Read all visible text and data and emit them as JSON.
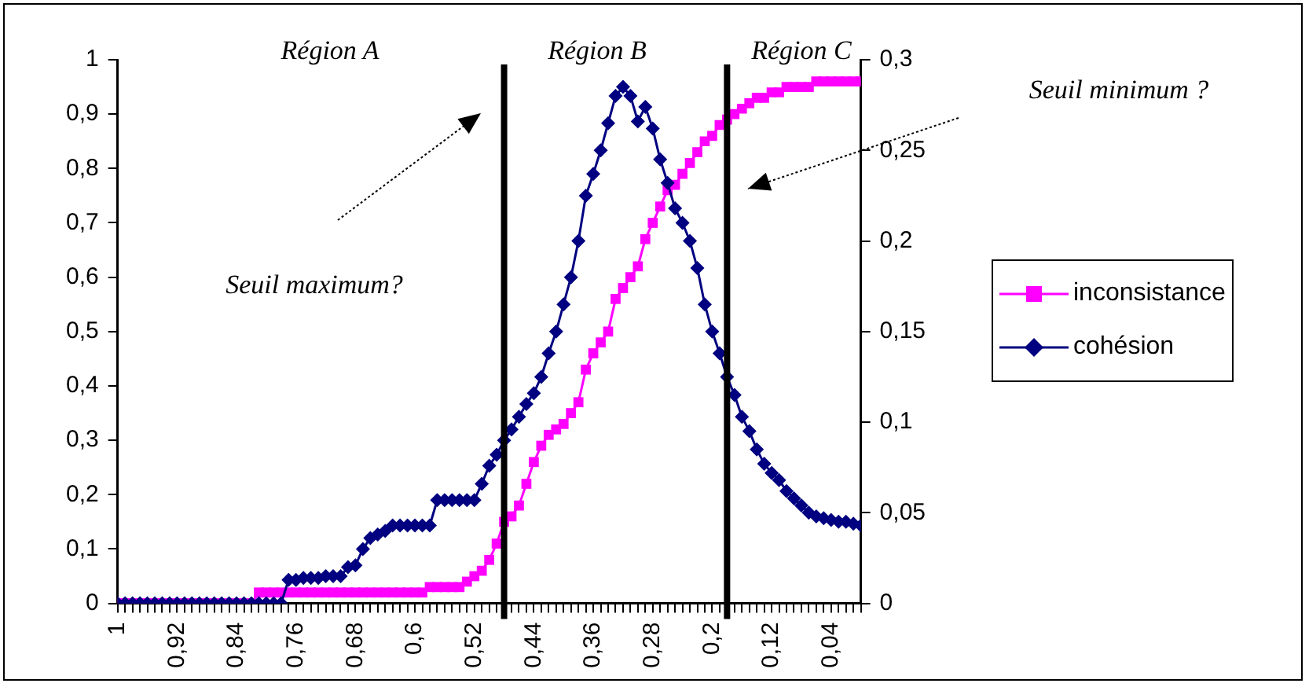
{
  "chart_data": {
    "type": "line",
    "annotations": [
      "Région A",
      "Région B",
      "Région C",
      "Seuil maximum?",
      "Seuil minimum ?"
    ],
    "x": [
      1,
      0.99,
      0.98,
      0.97,
      0.96,
      0.95,
      0.94,
      0.93,
      0.92,
      0.91,
      0.9,
      0.89,
      0.88,
      0.87,
      0.86,
      0.85,
      0.84,
      0.83,
      0.82,
      0.81,
      0.8,
      0.79,
      0.78,
      0.77,
      0.76,
      0.75,
      0.74,
      0.73,
      0.72,
      0.71,
      0.7,
      0.69,
      0.68,
      0.67,
      0.66,
      0.65,
      0.64,
      0.63,
      0.62,
      0.61,
      0.6,
      0.59,
      0.58,
      0.57,
      0.56,
      0.55,
      0.54,
      0.53,
      0.52,
      0.51,
      0.5,
      0.49,
      0.48,
      0.47,
      0.46,
      0.45,
      0.44,
      0.43,
      0.42,
      0.41,
      0.4,
      0.39,
      0.38,
      0.37,
      0.36,
      0.35,
      0.34,
      0.33,
      0.32,
      0.31,
      0.3,
      0.29,
      0.28,
      0.27,
      0.26,
      0.25,
      0.24,
      0.23,
      0.22,
      0.21,
      0.2,
      0.19,
      0.18,
      0.17,
      0.16,
      0.15,
      0.14,
      0.13,
      0.12,
      0.11,
      0.1,
      0.09,
      0.08,
      0.07,
      0.06,
      0.05,
      0.04,
      0.03,
      0.02,
      0.01,
      0
    ],
    "series": [
      {
        "name": "inconsistance",
        "color": "#ff00ff",
        "marker": "square",
        "values": [
          0,
          0,
          0,
          0,
          0,
          0,
          0,
          0,
          0,
          0,
          0,
          0,
          0,
          0,
          0,
          0,
          0,
          0,
          0,
          0.02,
          0.02,
          0.02,
          0.02,
          0.02,
          0.02,
          0.02,
          0.02,
          0.02,
          0.02,
          0.02,
          0.02,
          0.02,
          0.02,
          0.02,
          0.02,
          0.02,
          0.02,
          0.02,
          0.02,
          0.02,
          0.02,
          0.02,
          0.03,
          0.03,
          0.03,
          0.03,
          0.03,
          0.04,
          0.05,
          0.06,
          0.08,
          0.11,
          0.15,
          0.16,
          0.18,
          0.22,
          0.26,
          0.29,
          0.31,
          0.32,
          0.33,
          0.35,
          0.37,
          0.43,
          0.46,
          0.48,
          0.5,
          0.56,
          0.58,
          0.6,
          0.62,
          0.67,
          0.7,
          0.73,
          0.76,
          0.77,
          0.79,
          0.81,
          0.83,
          0.85,
          0.86,
          0.88,
          0.89,
          0.9,
          0.91,
          0.92,
          0.93,
          0.93,
          0.94,
          0.94,
          0.95,
          0.95,
          0.95,
          0.95,
          0.96,
          0.96,
          0.96,
          0.96,
          0.96,
          0.96,
          0.96
        ]
      },
      {
        "name": "cohésion",
        "color": "#000080",
        "marker": "diamond",
        "axis": "y2",
        "values": [
          0,
          0,
          0,
          0,
          0,
          0,
          0,
          0,
          0,
          0,
          0,
          0,
          0,
          0,
          0,
          0,
          0,
          0,
          0,
          0,
          0,
          0,
          0,
          0.013,
          0.013,
          0.014,
          0.014,
          0.014,
          0.015,
          0.015,
          0.015,
          0.02,
          0.021,
          0.03,
          0.036,
          0.038,
          0.04,
          0.043,
          0.043,
          0.043,
          0.043,
          0.043,
          0.043,
          0.057,
          0.057,
          0.057,
          0.057,
          0.057,
          0.057,
          0.066,
          0.076,
          0.082,
          0.09,
          0.096,
          0.103,
          0.11,
          0.116,
          0.125,
          0.138,
          0.15,
          0.165,
          0.18,
          0.2,
          0.225,
          0.237,
          0.25,
          0.265,
          0.28,
          0.285,
          0.28,
          0.266,
          0.274,
          0.262,
          0.245,
          0.232,
          0.218,
          0.21,
          0.2,
          0.185,
          0.165,
          0.15,
          0.138,
          0.125,
          0.115,
          0.103,
          0.095,
          0.085,
          0.077,
          0.072,
          0.068,
          0.062,
          0.058,
          0.054,
          0.05,
          0.048,
          0.047,
          0.046,
          0.045,
          0.045,
          0.044,
          0.043
        ]
      }
    ],
    "xlim": [
      1,
      0
    ],
    "xticks": [
      1,
      {
        "value": 0.99,
        "label": null
      },
      {
        "value": 0.98,
        "label": null
      },
      {
        "value": 0.97,
        "label": null
      },
      {
        "value": 0.96,
        "label": null
      },
      {
        "value": 0.95,
        "label": null
      },
      {
        "value": 0.94,
        "label": null
      },
      {
        "value": 0.93,
        "label": null
      },
      {
        "value": 0.92,
        "label": "0,92"
      },
      {
        "value": 0.91,
        "label": null
      },
      {
        "value": 0.9,
        "label": null
      },
      {
        "value": 0.89,
        "label": null
      },
      {
        "value": 0.88,
        "label": null
      },
      {
        "value": 0.87,
        "label": null
      },
      {
        "value": 0.86,
        "label": null
      },
      {
        "value": 0.85,
        "label": null
      },
      {
        "value": 0.84,
        "label": "0,84"
      },
      {
        "value": 0.83,
        "label": null
      },
      {
        "value": 0.82,
        "label": null
      },
      {
        "value": 0.81,
        "label": null
      },
      {
        "value": 0.8,
        "label": null
      },
      {
        "value": 0.79,
        "label": null
      },
      {
        "value": 0.78,
        "label": null
      },
      {
        "value": 0.77,
        "label": null
      },
      {
        "value": 0.76,
        "label": "0,76"
      },
      {
        "value": 0.75,
        "label": null
      },
      {
        "value": 0.74,
        "label": null
      },
      {
        "value": 0.73,
        "label": null
      },
      {
        "value": 0.72,
        "label": null
      },
      {
        "value": 0.71,
        "label": null
      },
      {
        "value": 0.7,
        "label": null
      },
      {
        "value": 0.69,
        "label": null
      },
      {
        "value": 0.68,
        "label": "0,68"
      },
      {
        "value": 0.67,
        "label": null
      },
      {
        "value": 0.66,
        "label": null
      },
      {
        "value": 0.65,
        "label": null
      },
      {
        "value": 0.64,
        "label": null
      },
      {
        "value": 0.63,
        "label": null
      },
      {
        "value": 0.62,
        "label": null
      },
      {
        "value": 0.61,
        "label": null
      },
      {
        "value": 0.6,
        "label": "0,6"
      },
      {
        "value": 0.59,
        "label": null
      },
      {
        "value": 0.58,
        "label": null
      },
      {
        "value": 0.57,
        "label": null
      },
      {
        "value": 0.56,
        "label": null
      },
      {
        "value": 0.55,
        "label": null
      },
      {
        "value": 0.54,
        "label": null
      },
      {
        "value": 0.53,
        "label": null
      },
      {
        "value": 0.52,
        "label": "0,52"
      },
      {
        "value": 0.51,
        "label": null
      },
      {
        "value": 0.5,
        "label": null
      },
      {
        "value": 0.49,
        "label": null
      },
      {
        "value": 0.48,
        "label": null
      },
      {
        "value": 0.47,
        "label": null
      },
      {
        "value": 0.46,
        "label": null
      },
      {
        "value": 0.45,
        "label": null
      },
      {
        "value": 0.44,
        "label": "0,44"
      },
      {
        "value": 0.43,
        "label": null
      },
      {
        "value": 0.42,
        "label": null
      },
      {
        "value": 0.41,
        "label": null
      },
      {
        "value": 0.4,
        "label": null
      },
      {
        "value": 0.39,
        "label": null
      },
      {
        "value": 0.38,
        "label": null
      },
      {
        "value": 0.37,
        "label": null
      },
      {
        "value": 0.36,
        "label": "0,36"
      },
      {
        "value": 0.35,
        "label": null
      },
      {
        "value": 0.34,
        "label": null
      },
      {
        "value": 0.33,
        "label": null
      },
      {
        "value": 0.32,
        "label": null
      },
      {
        "value": 0.31,
        "label": null
      },
      {
        "value": 0.3,
        "label": null
      },
      {
        "value": 0.29,
        "label": null
      },
      {
        "value": 0.28,
        "label": "0,28"
      },
      {
        "value": 0.27,
        "label": null
      },
      {
        "value": 0.26,
        "label": null
      },
      {
        "value": 0.25,
        "label": null
      },
      {
        "value": 0.24,
        "label": null
      },
      {
        "value": 0.23,
        "label": null
      },
      {
        "value": 0.22,
        "label": null
      },
      {
        "value": 0.21,
        "label": null
      },
      {
        "value": 0.2,
        "label": "0,2"
      },
      {
        "value": 0.19,
        "label": null
      },
      {
        "value": 0.18,
        "label": null
      },
      {
        "value": 0.17,
        "label": null
      },
      {
        "value": 0.16,
        "label": null
      },
      {
        "value": 0.15,
        "label": null
      },
      {
        "value": 0.14,
        "label": null
      },
      {
        "value": 0.13,
        "label": null
      },
      {
        "value": 0.12,
        "label": "0,12"
      },
      {
        "value": 0.11,
        "label": null
      },
      {
        "value": 0.1,
        "label": null
      },
      {
        "value": 0.09,
        "label": null
      },
      {
        "value": 0.08,
        "label": null
      },
      {
        "value": 0.07,
        "label": null
      },
      {
        "value": 0.06,
        "label": null
      },
      {
        "value": 0.05,
        "label": null
      },
      {
        "value": 0.04,
        "label": "0,04"
      },
      {
        "value": 0.03,
        "label": null
      },
      {
        "value": 0.02,
        "label": null
      },
      {
        "value": 0.01,
        "label": null
      },
      {
        "value": 0,
        "label": null
      }
    ],
    "ylim": [
      0,
      1
    ],
    "yticks": [
      0,
      {
        "value": 0.1,
        "label": "0,1"
      },
      {
        "value": 0.2,
        "label": "0,2"
      },
      {
        "value": 0.3,
        "label": "0,3"
      },
      {
        "value": 0.4,
        "label": "0,4"
      },
      {
        "value": 0.5,
        "label": "0,5"
      },
      {
        "value": 0.6,
        "label": "0,6"
      },
      {
        "value": 0.7,
        "label": "0,7"
      },
      {
        "value": 0.8,
        "label": "0,8"
      },
      {
        "value": 0.9,
        "label": "0,9"
      },
      1
    ],
    "y2lim": [
      0,
      0.3
    ],
    "y2ticks": [
      0,
      {
        "value": 0.05,
        "label": "0,05"
      },
      {
        "value": 0.1,
        "label": "0,1"
      },
      {
        "value": 0.15,
        "label": "0,15"
      },
      {
        "value": 0.2,
        "label": "0,2"
      },
      {
        "value": 0.25,
        "label": "0,25"
      },
      {
        "value": 0.3,
        "label": "0,3"
      }
    ],
    "ref_lines": [
      {
        "axis": "x",
        "value": 0.48,
        "color": "#000000"
      },
      {
        "axis": "x",
        "value": 0.18,
        "color": "#000000"
      }
    ],
    "grid": false,
    "legend": "right",
    "line_style": "solid"
  }
}
